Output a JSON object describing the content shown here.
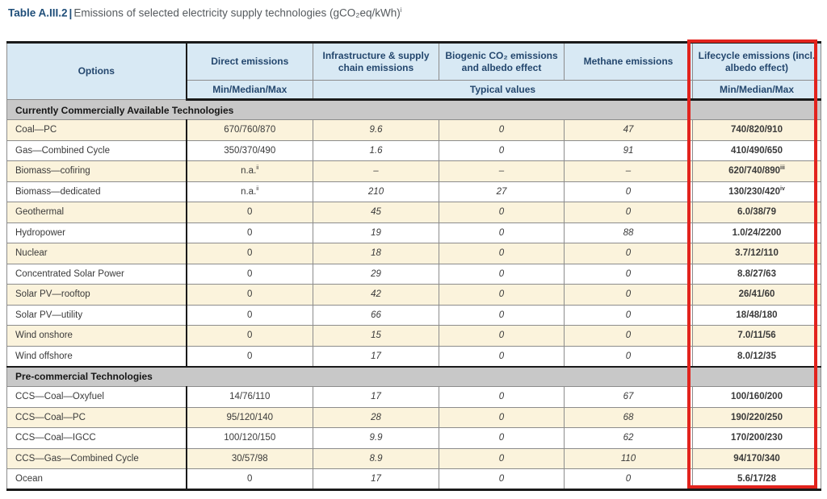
{
  "title": {
    "label": "Table A.III.2",
    "separator": "|",
    "text": "Emissions of selected electricity supply technologies (gCO₂eq/kWh)",
    "footnote_marker": "i"
  },
  "table": {
    "columns": [
      {
        "label": "Options"
      },
      {
        "label": "Direct emissions",
        "sub": "Min/Median/Max"
      },
      {
        "label": "Infrastructure & supply chain emissions"
      },
      {
        "label": "Biogenic CO₂ emissions and albedo effect"
      },
      {
        "label": "Methane emissions"
      },
      {
        "label": "Lifecycle emissions (incl. albedo effect)",
        "sub": "Min/Median/Max"
      }
    ],
    "typical_values_label": "Typical values",
    "sections": [
      {
        "header": "Currently Commercially Available Technologies",
        "rows": [
          {
            "option": "Coal—PC",
            "shade": "cream",
            "cells": [
              "670/760/870",
              "9.6",
              "0",
              "47",
              "740/820/910"
            ]
          },
          {
            "option": "Gas—Combined Cycle",
            "shade": "white",
            "cells": [
              "350/370/490",
              "1.6",
              "0",
              "91",
              "410/490/650"
            ]
          },
          {
            "option": "Biomass—cofiring",
            "shade": "cream",
            "cells": [
              {
                "t": "n.a.",
                "sup": "ii"
              },
              "–",
              "–",
              "–",
              {
                "t": "620/740/890",
                "sup": "iii"
              }
            ]
          },
          {
            "option": "Biomass—dedicated",
            "shade": "white",
            "cells": [
              {
                "t": "n.a.",
                "sup": "ii"
              },
              "210",
              "27",
              "0",
              {
                "t": "130/230/420",
                "sup": "iv"
              }
            ]
          },
          {
            "option": "Geothermal",
            "shade": "cream",
            "cells": [
              "0",
              "45",
              "0",
              "0",
              "6.0/38/79"
            ]
          },
          {
            "option": "Hydropower",
            "shade": "white",
            "cells": [
              "0",
              "19",
              "0",
              "88",
              "1.0/24/2200"
            ]
          },
          {
            "option": "Nuclear",
            "shade": "cream",
            "cells": [
              "0",
              "18",
              "0",
              "0",
              "3.7/12/110"
            ]
          },
          {
            "option": "Concentrated Solar Power",
            "shade": "white",
            "cells": [
              "0",
              "29",
              "0",
              "0",
              "8.8/27/63"
            ]
          },
          {
            "option": "Solar PV—rooftop",
            "shade": "cream",
            "cells": [
              "0",
              "42",
              "0",
              "0",
              "26/41/60"
            ]
          },
          {
            "option": "Solar PV—utility",
            "shade": "white",
            "cells": [
              "0",
              "66",
              "0",
              "0",
              "18/48/180"
            ]
          },
          {
            "option": "Wind onshore",
            "shade": "cream",
            "cells": [
              "0",
              "15",
              "0",
              "0",
              "7.0/11/56"
            ]
          },
          {
            "option": "Wind offshore",
            "shade": "white",
            "cells": [
              "0",
              "17",
              "0",
              "0",
              "8.0/12/35"
            ]
          }
        ]
      },
      {
        "header": "Pre-commercial Technologies",
        "rows": [
          {
            "option": "CCS—Coal—Oxyfuel",
            "shade": "white",
            "cells": [
              "14/76/110",
              "17",
              "0",
              "67",
              "100/160/200"
            ]
          },
          {
            "option": "CCS—Coal—PC",
            "shade": "cream",
            "cells": [
              "95/120/140",
              "28",
              "0",
              "68",
              "190/220/250"
            ]
          },
          {
            "option": "CCS—Coal—IGCC",
            "shade": "white",
            "cells": [
              "100/120/150",
              "9.9",
              "0",
              "62",
              "170/200/230"
            ]
          },
          {
            "option": "CCS—Gas—Combined Cycle",
            "shade": "cream",
            "cells": [
              "30/57/98",
              "8.9",
              "0",
              "110",
              "94/170/340"
            ]
          },
          {
            "option": "Ocean",
            "shade": "white",
            "cells": [
              "0",
              "17",
              "0",
              "0",
              "5.6/17/28"
            ]
          }
        ]
      }
    ]
  },
  "highlight": {
    "description": "red box outlining the Lifecycle emissions column",
    "color": "#e2231d"
  },
  "colors": {
    "header_bg": "#d8e9f4",
    "header_text": "#24476e",
    "section_bg": "#c8c8c8",
    "row_cream": "#fbf3dc",
    "row_white": "#ffffff",
    "body_text": "#3a3a3a",
    "title_accent": "#1f4e79",
    "highlight_red": "#e2231d"
  }
}
